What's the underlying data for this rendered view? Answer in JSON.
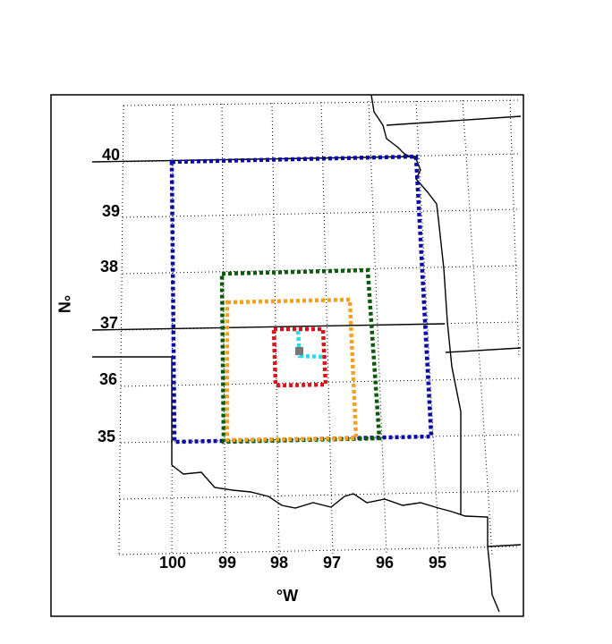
{
  "map": {
    "latitude_labels": [
      "40",
      "39",
      "38",
      "37",
      "36",
      "35"
    ],
    "longitude_labels": [
      "100",
      "99",
      "98",
      "97",
      "96",
      "95"
    ],
    "x_axis_label": "°W",
    "y_axis_label": "°N"
  }
}
